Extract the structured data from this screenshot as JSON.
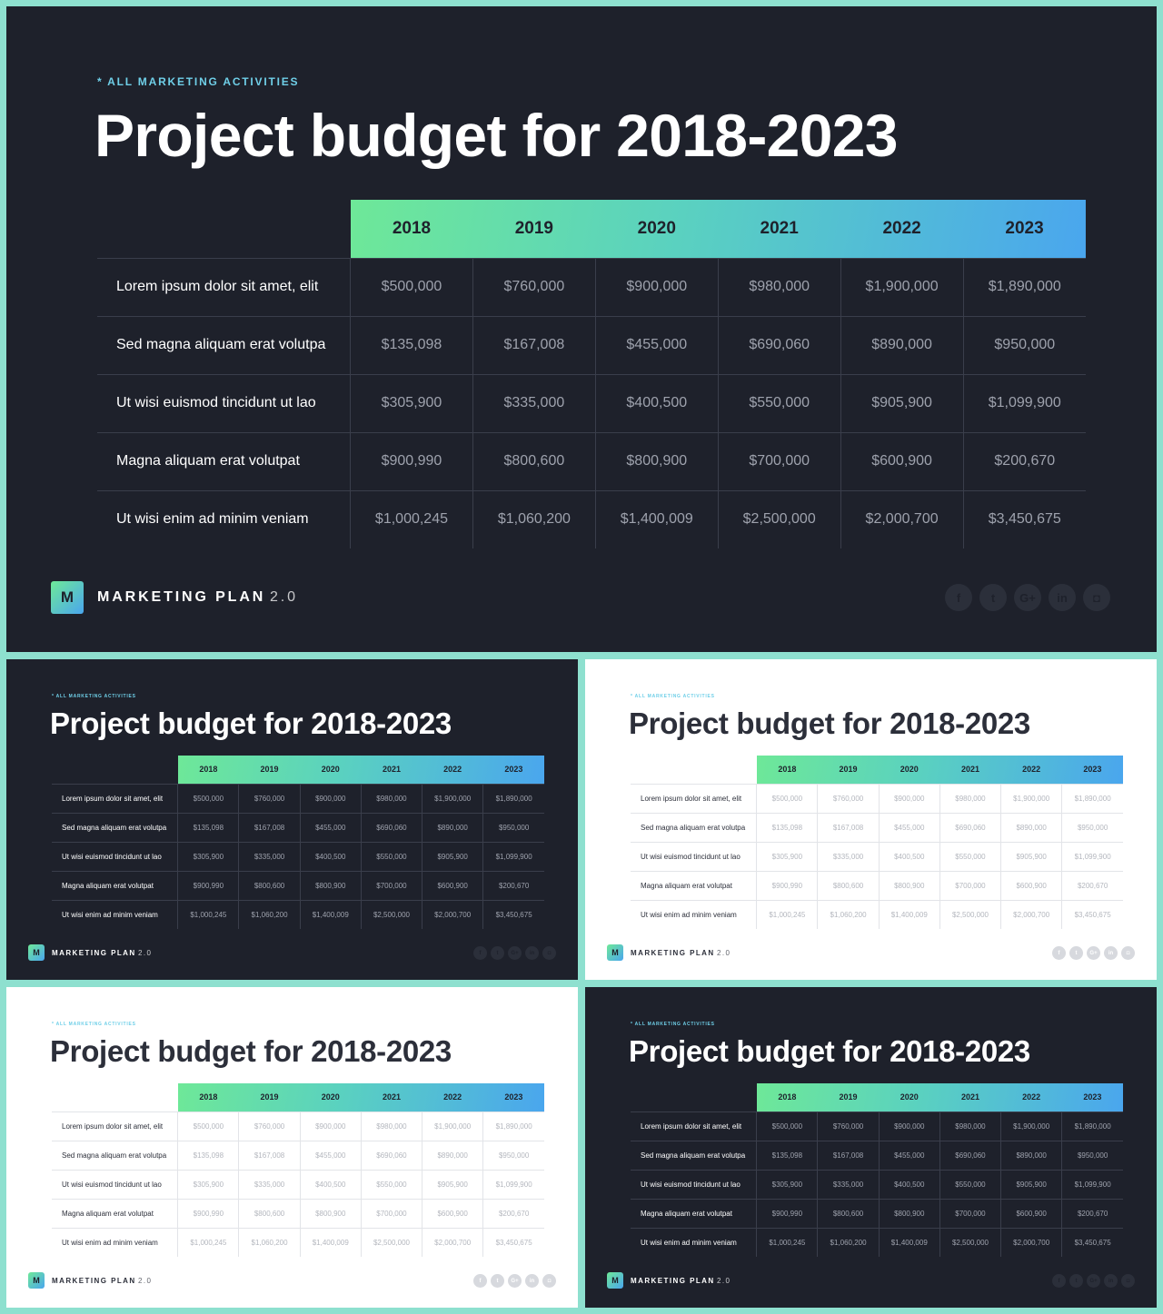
{
  "subtitle": "* ALL MARKETING ACTIVITIES",
  "title": "Project budget for 2018-2023",
  "table": {
    "years": [
      "2018",
      "2019",
      "2020",
      "2021",
      "2022",
      "2023"
    ],
    "rows": [
      {
        "label": "Lorem ipsum dolor sit amet, elit",
        "values": [
          "$500,000",
          "$760,000",
          "$900,000",
          "$980,000",
          "$1,900,000",
          "$1,890,000"
        ]
      },
      {
        "label": "Sed magna aliquam erat volutpa",
        "values": [
          "$135,098",
          "$167,008",
          "$455,000",
          "$690,060",
          "$890,000",
          "$950,000"
        ]
      },
      {
        "label": "Ut wisi euismod tincidunt ut lao",
        "values": [
          "$305,900",
          "$335,000",
          "$400,500",
          "$550,000",
          "$905,900",
          "$1,099,900"
        ]
      },
      {
        "label": "Magna aliquam erat volutpat",
        "values": [
          "$900,990",
          "$800,600",
          "$800,900",
          "$700,000",
          "$600,900",
          "$200,670"
        ]
      },
      {
        "label": "Ut wisi enim ad minim veniam",
        "values": [
          "$1,000,245",
          "$1,060,200",
          "$1,400,009",
          "$2,500,000",
          "$2,000,700",
          "$3,450,675"
        ]
      }
    ]
  },
  "footer": {
    "logo_letter": "M",
    "brand": "MARKETING PLAN",
    "version": "2.0"
  },
  "socials": [
    {
      "icon": "facebook-icon",
      "glyph": "f"
    },
    {
      "icon": "twitter-icon",
      "glyph": "t"
    },
    {
      "icon": "google-plus-icon",
      "glyph": "G+"
    },
    {
      "icon": "linkedin-icon",
      "glyph": "in"
    },
    {
      "icon": "instagram-icon",
      "glyph": "◘"
    }
  ],
  "colors": {
    "frame": "#8ee0cf",
    "dark_bg": "#1e212b",
    "light_bg": "#ffffff",
    "gradient_start": "#6ee898",
    "gradient_end": "#4aa6ee",
    "accent": "#6fcfe8"
  },
  "slides": [
    {
      "id": "main",
      "theme": "dark"
    },
    {
      "id": "top-left",
      "theme": "dark"
    },
    {
      "id": "top-right",
      "theme": "light"
    },
    {
      "id": "bottom-left",
      "theme": "light"
    },
    {
      "id": "bottom-right",
      "theme": "dark"
    }
  ]
}
